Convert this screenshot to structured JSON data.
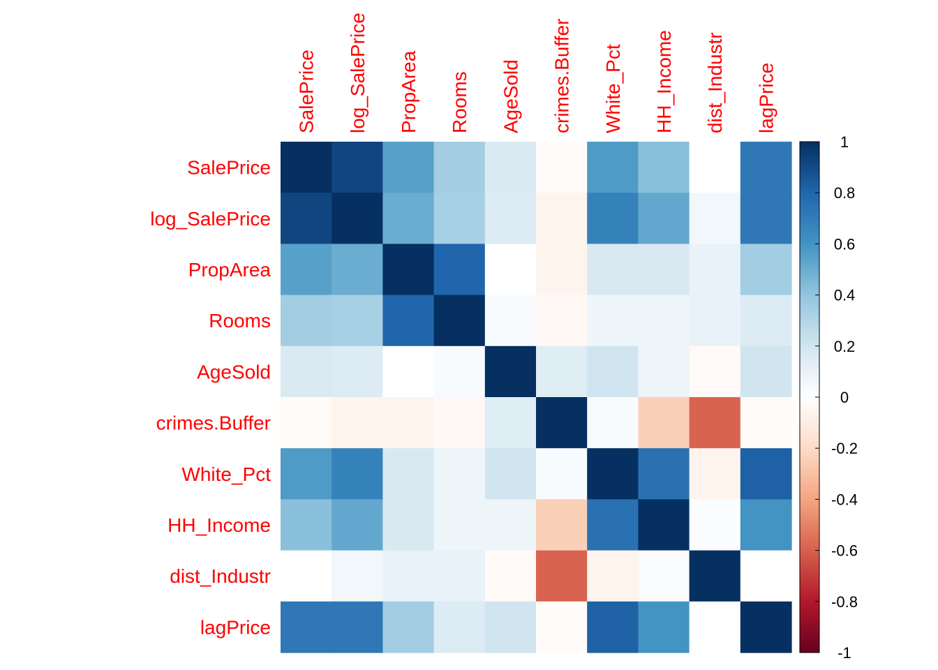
{
  "chart_data": {
    "type": "heatmap",
    "variables": [
      "SalePrice",
      "log_SalePrice",
      "PropArea",
      "Rooms",
      "AgeSold",
      "crimes.Buffer",
      "White_Pct",
      "HH_Income",
      "dist_Industr",
      "lagPrice"
    ],
    "matrix": [
      [
        1.0,
        0.92,
        0.55,
        0.35,
        0.16,
        -0.02,
        0.57,
        0.42,
        0.0,
        0.72
      ],
      [
        0.92,
        1.0,
        0.5,
        0.33,
        0.15,
        -0.06,
        0.68,
        0.52,
        0.06,
        0.72
      ],
      [
        0.55,
        0.5,
        1.0,
        0.8,
        0.0,
        -0.06,
        0.17,
        0.17,
        0.1,
        0.35
      ],
      [
        0.35,
        0.33,
        0.8,
        1.0,
        0.03,
        -0.04,
        0.07,
        0.07,
        0.1,
        0.15
      ],
      [
        0.16,
        0.15,
        0.0,
        0.03,
        1.0,
        0.14,
        0.2,
        0.08,
        -0.03,
        0.2
      ],
      [
        -0.02,
        -0.06,
        -0.06,
        -0.04,
        0.14,
        1.0,
        0.03,
        -0.24,
        -0.59,
        -0.02
      ],
      [
        0.57,
        0.68,
        0.17,
        0.07,
        0.2,
        0.03,
        1.0,
        0.75,
        -0.06,
        0.82
      ],
      [
        0.42,
        0.52,
        0.17,
        0.07,
        0.08,
        -0.24,
        0.75,
        1.0,
        0.02,
        0.6
      ],
      [
        0.0,
        0.06,
        0.1,
        0.1,
        -0.03,
        -0.59,
        -0.06,
        0.02,
        1.0,
        0.0
      ],
      [
        0.72,
        0.72,
        0.35,
        0.15,
        0.2,
        -0.02,
        0.82,
        0.6,
        0.0,
        1.0
      ]
    ],
    "colorbar": {
      "range": [
        -1,
        1
      ],
      "ticks": [
        "1",
        "0.8",
        "0.6",
        "0.4",
        "0.2",
        "0",
        "-0.2",
        "-0.4",
        "-0.6",
        "-0.8",
        "-1"
      ],
      "placement": "right"
    },
    "colors": {
      "label": "#ff0000",
      "scale": [
        "#67001f",
        "#b2182b",
        "#d6604d",
        "#f4a582",
        "#fddbc7",
        "#ffffff",
        "#d1e5f0",
        "#92c5de",
        "#4393c3",
        "#2166ac",
        "#053061"
      ]
    },
    "grid": false,
    "title": ""
  }
}
